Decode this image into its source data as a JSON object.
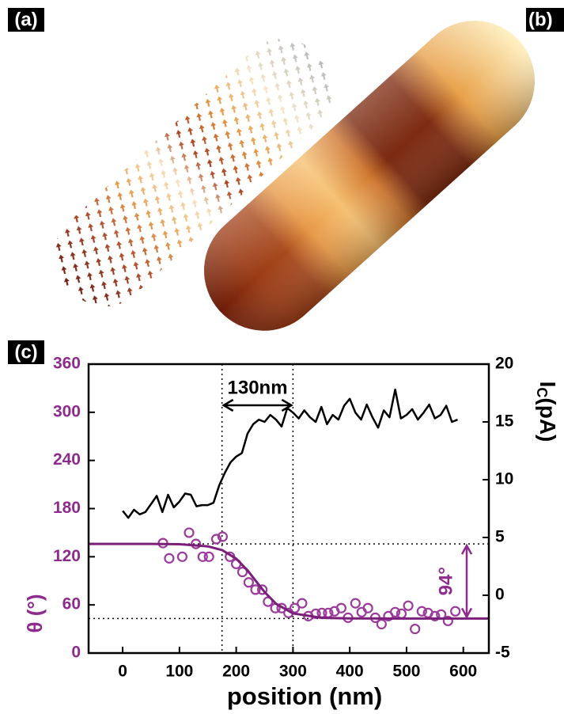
{
  "panels": [
    "(a)",
    "(b)",
    "(c)"
  ],
  "chart_data": {
    "type": "line",
    "xlabel": "position (nm)",
    "ylabel": "θ (°)",
    "y2label": [
      "I",
      "C",
      "(pA)"
    ],
    "ylabel_color": "#8e2c8e",
    "xlim": [
      -60,
      645
    ],
    "xticks": [
      0,
      100,
      200,
      300,
      400,
      500,
      600
    ],
    "ylim": [
      0,
      360
    ],
    "yticks": [
      0,
      60,
      120,
      180,
      240,
      300,
      360
    ],
    "y2lim": [
      -5,
      20
    ],
    "y2ticks": [
      -5,
      0,
      5,
      10,
      15,
      20
    ],
    "series": [
      {
        "type": "line",
        "axis": "y2",
        "color": "#000000",
        "x": [
          0,
          10,
          20,
          30,
          40,
          50,
          60,
          70,
          80,
          90,
          100,
          110,
          120,
          130,
          140,
          150,
          160,
          170,
          180,
          190,
          200,
          210,
          220,
          230,
          240,
          250,
          260,
          270,
          280,
          290,
          300,
          310,
          320,
          330,
          340,
          350,
          360,
          370,
          380,
          390,
          400,
          410,
          420,
          430,
          440,
          450,
          460,
          470,
          480,
          490,
          500,
          510,
          520,
          530,
          540,
          550,
          560,
          570,
          580,
          590
        ],
        "values": [
          7.3,
          6.7,
          7.4,
          7.0,
          7.2,
          7.9,
          8.6,
          7.2,
          8.7,
          7.6,
          8.1,
          8.8,
          8.7,
          7.7,
          7.8,
          7.8,
          8.0,
          9.5,
          10.6,
          11.5,
          12.0,
          12.3,
          14.0,
          14.8,
          15.2,
          15.0,
          15.6,
          15.2,
          14.6,
          16.2,
          15.8,
          15.3,
          16.0,
          15.4,
          15.0,
          16.3,
          14.8,
          15.6,
          15.2,
          16.4,
          17.0,
          15.8,
          15.2,
          16.5,
          15.4,
          14.5,
          16.0,
          15.4,
          17.8,
          15.3,
          15.6,
          16.1,
          15.2,
          15.8,
          16.5,
          15.3,
          15.6,
          16.4,
          15.0,
          15.2
        ]
      },
      {
        "type": "scatter",
        "color": "#9b3b9b",
        "x": [
          71,
          82,
          105,
          117,
          129,
          141,
          152,
          165,
          176,
          189,
          200,
          211,
          222,
          234,
          246,
          256,
          269,
          280,
          292,
          303,
          316,
          327,
          340,
          351,
          362,
          373,
          385,
          397,
          410,
          421,
          432,
          445,
          456,
          468,
          480,
          491,
          503,
          515,
          527,
          538,
          550,
          561,
          573,
          586
        ],
        "values": [
          137,
          118,
          120,
          150,
          136,
          120,
          120,
          142,
          145,
          120,
          111,
          101,
          88,
          79,
          79,
          64,
          56,
          56,
          50,
          56,
          62,
          46,
          49,
          50,
          50,
          52,
          56,
          44,
          62,
          51,
          56,
          44,
          36,
          46,
          51,
          49,
          59,
          30,
          52,
          50,
          46,
          48,
          40,
          52
        ]
      },
      {
        "type": "line",
        "color": "#7a1f7a",
        "x": [
          -60,
          0,
          50,
          100,
          150,
          175,
          200,
          220,
          235,
          250,
          270,
          300,
          350,
          400,
          500,
          645
        ],
        "values": [
          136,
          136,
          136,
          135.6,
          133,
          128.3,
          117.6,
          103,
          89.5,
          76,
          61.4,
          49.4,
          43.9,
          43.1,
          43,
          43
        ]
      }
    ],
    "reference_lines": {
      "x": [
        175,
        300
      ],
      "y": [
        136,
        43
      ]
    },
    "annotations": [
      "130nm",
      "94°"
    ]
  }
}
